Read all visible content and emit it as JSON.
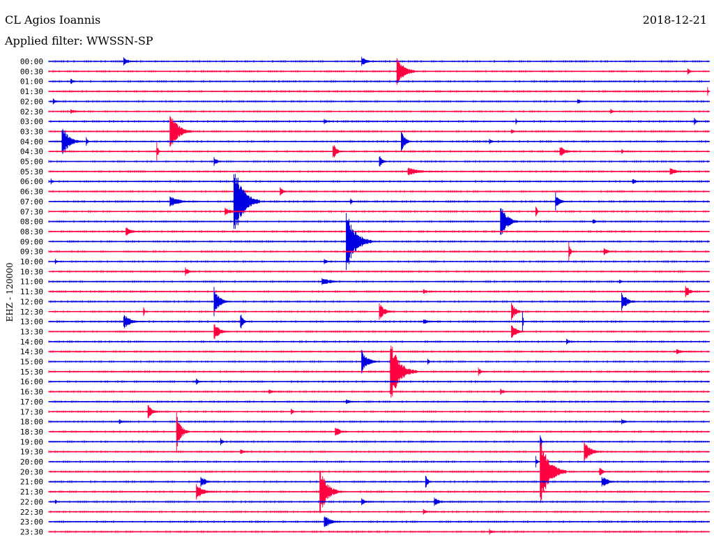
{
  "header": {
    "station": "CL Agios Ioannis",
    "date": "2018-12-21",
    "filter": "Applied filter: WWSSN-SP"
  },
  "chart_data": {
    "type": "line",
    "channel_label": "EHZ - 120000",
    "x_unit": "minutes within each 30-minute trace",
    "xlim": [
      0,
      30
    ],
    "colors": [
      "#0000e0",
      "#ff0040"
    ],
    "traces": [
      {
        "label": "00:00",
        "events": [
          [
            3.4,
            0.3,
            0.6
          ],
          [
            14.2,
            0.3,
            0.7
          ]
        ]
      },
      {
        "label": "00:30",
        "events": [
          [
            15.8,
            1.0,
            1.0
          ],
          [
            29.0,
            0.2,
            0.4
          ]
        ]
      },
      {
        "label": "01:00",
        "events": [
          [
            1.0,
            0.2,
            0.4
          ]
        ]
      },
      {
        "label": "01:30",
        "events": [
          [
            29.9,
            0.3,
            0.1
          ]
        ]
      },
      {
        "label": "02:00",
        "events": [
          [
            0.2,
            0.2,
            0.4
          ],
          [
            24.0,
            0.2,
            0.5
          ]
        ]
      },
      {
        "label": "02:30",
        "events": [
          [
            1.0,
            0.2,
            0.6
          ],
          [
            25.5,
            0.2,
            0.4
          ]
        ]
      },
      {
        "label": "03:00",
        "events": [
          [
            12.5,
            0.2,
            0.4
          ],
          [
            21.2,
            0.2,
            0.2
          ],
          [
            29.3,
            0.4,
            0.2
          ]
        ]
      },
      {
        "label": "03:30",
        "events": [
          [
            5.5,
            1.4,
            1.0
          ],
          [
            21.0,
            0.2,
            0.4
          ]
        ]
      },
      {
        "label": "04:00",
        "events": [
          [
            0.6,
            1.1,
            0.9
          ],
          [
            1.7,
            0.3,
            0.2
          ],
          [
            16.0,
            0.8,
            0.5
          ],
          [
            20.0,
            0.2,
            0.4
          ]
        ]
      },
      {
        "label": "04:30",
        "events": [
          [
            4.9,
            0.6,
            0.2
          ],
          [
            12.9,
            0.6,
            0.5
          ],
          [
            23.2,
            0.4,
            0.7
          ],
          [
            26.0,
            0.2,
            0.3
          ]
        ]
      },
      {
        "label": "05:00",
        "events": [
          [
            7.5,
            0.3,
            0.5
          ],
          [
            15.0,
            0.5,
            0.4
          ]
        ]
      },
      {
        "label": "05:30",
        "events": [
          [
            16.3,
            0.3,
            1.5
          ],
          [
            28.2,
            0.3,
            0.8
          ]
        ]
      },
      {
        "label": "06:00",
        "events": [
          [
            0.1,
            0.2,
            0.2
          ],
          [
            26.5,
            0.2,
            0.6
          ]
        ]
      },
      {
        "label": "06:30",
        "events": [
          [
            8.5,
            0.4,
            0.7
          ],
          [
            10.5,
            0.3,
            0.5
          ]
        ]
      },
      {
        "label": "07:00",
        "events": [
          [
            8.4,
            2.6,
            1.2
          ],
          [
            5.5,
            0.4,
            1.2
          ],
          [
            13.7,
            0.3,
            0.2
          ],
          [
            23.0,
            0.6,
            0.5
          ]
        ]
      },
      {
        "label": "07:30",
        "events": [
          [
            8.0,
            0.3,
            0.7
          ],
          [
            22.1,
            0.5,
            0.2
          ]
        ]
      },
      {
        "label": "08:00",
        "events": [
          [
            20.5,
            1.4,
            0.8
          ],
          [
            24.7,
            0.2,
            0.4
          ]
        ]
      },
      {
        "label": "08:30",
        "events": [
          [
            3.5,
            0.3,
            0.8
          ]
        ]
      },
      {
        "label": "09:00",
        "events": [
          [
            13.5,
            2.2,
            1.2
          ]
        ]
      },
      {
        "label": "09:30",
        "events": [
          [
            23.6,
            0.8,
            0.2
          ],
          [
            25.2,
            0.3,
            0.5
          ]
        ]
      },
      {
        "label": "10:00",
        "events": [
          [
            0.3,
            0.2,
            0.3
          ],
          [
            12.5,
            0.2,
            0.4
          ]
        ]
      },
      {
        "label": "10:30",
        "events": [
          [
            6.2,
            0.3,
            0.5
          ]
        ]
      },
      {
        "label": "11:00",
        "events": [
          [
            12.4,
            0.3,
            1.2
          ],
          [
            25.9,
            0.2,
            0.3
          ]
        ]
      },
      {
        "label": "11:30",
        "events": [
          [
            17.0,
            0.2,
            0.5
          ],
          [
            28.9,
            0.5,
            0.5
          ]
        ]
      },
      {
        "label": "12:00",
        "events": [
          [
            7.5,
            1.0,
            0.7
          ],
          [
            26.0,
            0.7,
            0.7
          ]
        ]
      },
      {
        "label": "12:30",
        "events": [
          [
            4.3,
            0.3,
            0.2
          ],
          [
            15.0,
            0.6,
            0.7
          ],
          [
            21.0,
            0.6,
            0.6
          ]
        ]
      },
      {
        "label": "13:00",
        "events": [
          [
            3.4,
            0.5,
            1.0
          ],
          [
            8.7,
            0.6,
            0.4
          ],
          [
            21.5,
            0.8,
            0.1
          ],
          [
            17.0,
            0.2,
            0.8
          ]
        ]
      },
      {
        "label": "13:30",
        "events": [
          [
            7.5,
            0.6,
            0.8
          ],
          [
            21.0,
            0.6,
            0.6
          ]
        ]
      },
      {
        "label": "14:00",
        "events": [
          [
            23.5,
            0.2,
            0.4
          ]
        ]
      },
      {
        "label": "14:30",
        "events": [
          [
            28.5,
            0.2,
            0.6
          ]
        ]
      },
      {
        "label": "15:00",
        "events": [
          [
            14.2,
            0.8,
            0.8
          ],
          [
            17.2,
            0.2,
            0.3
          ]
        ]
      },
      {
        "label": "15:30",
        "events": [
          [
            15.5,
            2.2,
            1.2
          ],
          [
            19.5,
            0.3,
            0.4
          ]
        ]
      },
      {
        "label": "16:00",
        "events": [
          [
            6.7,
            0.2,
            0.5
          ]
        ]
      },
      {
        "label": "16:30",
        "events": [
          [
            10.0,
            0.2,
            0.5
          ],
          [
            20.5,
            0.2,
            0.6
          ]
        ]
      },
      {
        "label": "17:00",
        "events": [
          [
            13.5,
            0.2,
            0.5
          ]
        ]
      },
      {
        "label": "17:30",
        "events": [
          [
            4.5,
            0.5,
            0.6
          ],
          [
            11.0,
            0.2,
            0.4
          ]
        ]
      },
      {
        "label": "18:00",
        "events": [
          [
            3.2,
            0.2,
            0.4
          ],
          [
            26.0,
            0.2,
            0.6
          ]
        ]
      },
      {
        "label": "18:30",
        "events": [
          [
            5.8,
            1.3,
            0.6
          ],
          [
            13.0,
            0.4,
            0.6
          ]
        ]
      },
      {
        "label": "19:00",
        "events": [
          [
            7.8,
            0.3,
            0.3
          ],
          [
            22.3,
            0.5,
            0.2
          ]
        ]
      },
      {
        "label": "19:30",
        "events": [
          [
            24.3,
            0.7,
            0.9
          ],
          [
            8.7,
            0.2,
            0.5
          ]
        ]
      },
      {
        "label": "20:00",
        "events": [
          [
            22.1,
            0.4,
            0.2
          ]
        ]
      },
      {
        "label": "20:30",
        "events": [
          [
            22.3,
            2.4,
            1.2
          ],
          [
            25.0,
            0.3,
            0.5
          ]
        ]
      },
      {
        "label": "21:00",
        "events": [
          [
            6.9,
            0.4,
            0.7
          ],
          [
            17.1,
            0.6,
            0.3
          ],
          [
            25.1,
            0.4,
            0.9
          ]
        ]
      },
      {
        "label": "21:30",
        "events": [
          [
            6.7,
            0.6,
            0.8
          ],
          [
            12.3,
            1.6,
            1.0
          ]
        ]
      },
      {
        "label": "22:00",
        "events": [
          [
            14.2,
            0.3,
            0.5
          ],
          [
            17.5,
            0.3,
            0.7
          ],
          [
            0.3,
            0.2,
            0.2
          ]
        ]
      },
      {
        "label": "22:30",
        "events": [
          [
            17.0,
            0.2,
            0.4
          ]
        ]
      },
      {
        "label": "23:00",
        "events": [
          [
            12.5,
            0.5,
            0.8
          ]
        ]
      },
      {
        "label": "23:30",
        "events": [
          [
            20.0,
            0.2,
            0.4
          ]
        ]
      }
    ]
  }
}
